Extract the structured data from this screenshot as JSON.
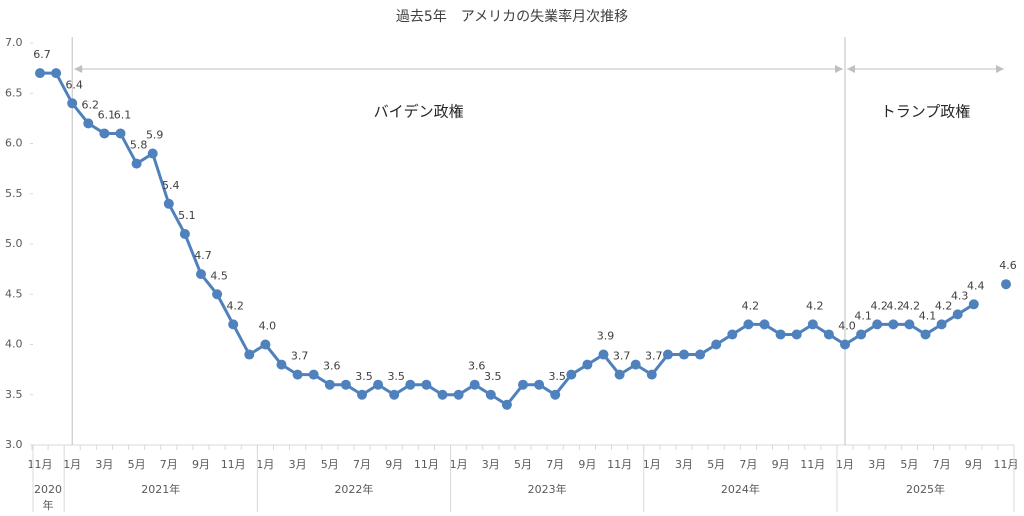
{
  "chart_data": {
    "type": "line",
    "title": "過去5年　アメリカの失業率月次推移",
    "categories": [
      "11月",
      null,
      "1月",
      null,
      "3月",
      null,
      "5月",
      null,
      "7月",
      null,
      "9月",
      null,
      "11月",
      null,
      "1月",
      null,
      "3月",
      null,
      "5月",
      null,
      "7月",
      null,
      "9月",
      null,
      "11月",
      null,
      "1月",
      null,
      "3月",
      null,
      "5月",
      null,
      "7月",
      null,
      "9月",
      null,
      "11月",
      null,
      "1月",
      null,
      "3月",
      null,
      "5月",
      null,
      "7月",
      null,
      "9月",
      null,
      "11月",
      null,
      "1月",
      null,
      "3月",
      null,
      "5月",
      null,
      "7月",
      null,
      "9月",
      null,
      "11月"
    ],
    "year_groups": [
      "2020年",
      "2021年",
      "2022年",
      "2023年",
      "2024年",
      "2025年"
    ],
    "series": [
      {
        "name": "失業率",
        "color": "#4f81bd",
        "values": [
          6.7,
          6.7,
          6.4,
          6.2,
          6.1,
          6.1,
          5.8,
          5.9,
          5.4,
          5.1,
          4.7,
          4.5,
          4.2,
          3.9,
          4.0,
          3.8,
          3.7,
          3.7,
          3.6,
          3.6,
          3.5,
          3.6,
          3.5,
          3.6,
          3.6,
          3.5,
          3.5,
          3.6,
          3.5,
          3.4,
          3.6,
          3.6,
          3.5,
          3.7,
          3.8,
          3.9,
          3.7,
          3.8,
          3.7,
          3.9,
          3.9,
          3.9,
          4.0,
          4.1,
          4.2,
          4.2,
          4.1,
          4.1,
          4.2,
          4.1,
          4.0,
          4.1,
          4.2,
          4.2,
          4.2,
          4.1,
          4.2,
          4.3,
          4.4,
          null,
          4.6
        ],
        "value_labels": [
          "6.7",
          null,
          "6.4",
          "6.2",
          "6.1",
          "6.1",
          "5.8",
          "5.9",
          "5.4",
          "5.1",
          "4.7",
          "4.5",
          "4.2",
          null,
          "4.0",
          null,
          "3.7",
          null,
          "3.6",
          null,
          "3.5",
          null,
          "3.5",
          null,
          null,
          null,
          null,
          "3.6",
          "3.5",
          null,
          null,
          null,
          "3.5",
          null,
          null,
          "3.9",
          "3.7",
          null,
          "3.7",
          null,
          null,
          null,
          null,
          null,
          "4.2",
          null,
          null,
          null,
          "4.2",
          null,
          "4.0",
          "4.1",
          "4.2",
          "4.2",
          "4.2",
          "4.1",
          "4.2",
          "4.3",
          "4.4",
          null,
          "4.6"
        ]
      }
    ],
    "ylim": [
      3,
      7
    ],
    "yticks": [
      {
        "value": 3,
        "label": "3.0"
      },
      3.5,
      {
        "value": 4,
        "label": "4.0"
      },
      4.5,
      {
        "value": 5,
        "label": "5.0"
      },
      5.5,
      {
        "value": 6,
        "label": "6.0"
      },
      6.5,
      {
        "value": 7,
        "label": "7.0"
      }
    ],
    "annotations": [
      "バイデン政権",
      "トランプ政権"
    ]
  }
}
